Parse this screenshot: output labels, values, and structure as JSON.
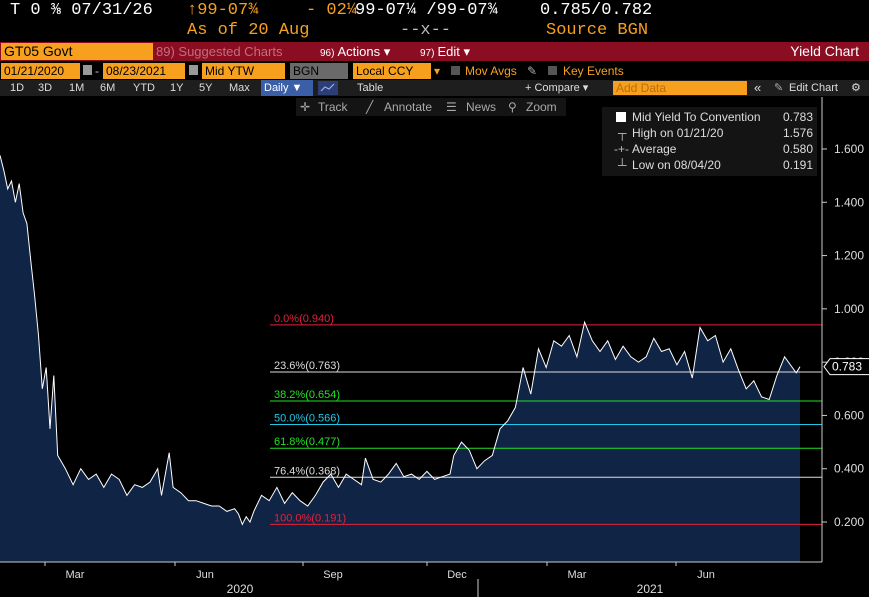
{
  "header": {
    "ticker": "T 0 ⅜ 07/31/26",
    "bid_ask_change": "↑99-07¾",
    "change": "- 02¼",
    "price": "99-07¼ /99-07¾",
    "yields": "0.785/0.782",
    "as_of": "As of 20 Aug",
    "dashes": "--x--",
    "source": "Source BGN"
  },
  "toolbar1": {
    "security": "GT05 Govt",
    "suggested": "89) Suggested Charts",
    "actions_num": "96)",
    "actions": "Actions ▾",
    "edit_num": "97)",
    "edit": "Edit ▾",
    "title": "Yield Chart"
  },
  "toolbar2": {
    "start_date": "01/21/2020",
    "end_date": "08/23/2021",
    "field": "Mid YTW",
    "source": "BGN",
    "currency": "Local CCY",
    "currency_arrow": "▾",
    "mov_avgs": "Mov Avgs",
    "key_events": "Key Events"
  },
  "toolbar3": {
    "periods": [
      "1D",
      "3D",
      "1M",
      "6M",
      "YTD",
      "1Y",
      "5Y",
      "Max"
    ],
    "frequency": "Daily ▼",
    "table": "Table",
    "compare": "+ Compare ▾",
    "add_data_placeholder": "Add Data",
    "back": "«",
    "edit_chart": "Edit Chart",
    "gear": "⚙"
  },
  "chart_tools": {
    "track": "Track",
    "annotate": "Annotate",
    "news": "News",
    "zoom": "Zoom"
  },
  "legend": {
    "series_label": "Mid Yield To Convention",
    "series_value": "0.783",
    "high_label": "High on 01/21/20",
    "high_value": "1.576",
    "avg_label": "Average",
    "avg_value": "0.580",
    "low_label": "Low on 08/04/20",
    "low_value": "0.191"
  },
  "colors": {
    "accent_orange": "#f7a01e",
    "toolbar_red": "#8b0d22",
    "fill": "#102446",
    "series": "#ffffff"
  },
  "chart_data": {
    "type": "area",
    "y_ticks": [
      0.2,
      0.4,
      0.6,
      0.8,
      1.0,
      1.2,
      1.4,
      1.6
    ],
    "y_tick_labels": [
      "0.200",
      "0.400",
      "0.600",
      "0.800",
      "1.000",
      "1.200",
      "1.400",
      "1.600"
    ],
    "ylim": [
      0.05,
      1.72
    ],
    "x_month_labels": [
      "Mar",
      "Jun",
      "Sep",
      "Dec",
      "Mar",
      "Jun"
    ],
    "x_year_labels": [
      "2020",
      "2021"
    ],
    "last_value_label": "0.783",
    "fib_levels": [
      {
        "label": "0.0%(0.940)",
        "value": 0.94,
        "color": "#e8203c"
      },
      {
        "label": "23.6%(0.763)",
        "value": 0.763,
        "color": "#dddddd"
      },
      {
        "label": "38.2%(0.654)",
        "value": 0.654,
        "color": "#22e022"
      },
      {
        "label": "50.0%(0.566)",
        "value": 0.566,
        "color": "#20c8e8"
      },
      {
        "label": "61.8%(0.477)",
        "value": 0.477,
        "color": "#22e022"
      },
      {
        "label": "76.4%(0.368)",
        "value": 0.368,
        "color": "#dddddd"
      },
      {
        "label": "100.0%(0.191)",
        "value": 0.191,
        "color": "#e8203c"
      }
    ],
    "series": [
      {
        "values": [
          [
            0,
            1.576
          ],
          [
            0.01,
            1.52
          ],
          [
            0.02,
            1.45
          ],
          [
            0.03,
            1.48
          ],
          [
            0.04,
            1.4
          ],
          [
            0.05,
            1.47
          ],
          [
            0.06,
            1.36
          ],
          [
            0.07,
            1.32
          ],
          [
            0.08,
            1.18
          ],
          [
            0.09,
            1.05
          ],
          [
            0.1,
            0.9
          ],
          [
            0.11,
            0.7
          ],
          [
            0.12,
            0.78
          ],
          [
            0.13,
            0.55
          ],
          [
            0.14,
            0.75
          ],
          [
            0.15,
            0.45
          ],
          [
            0.17,
            0.4
          ],
          [
            0.19,
            0.34
          ],
          [
            0.21,
            0.4
          ],
          [
            0.23,
            0.36
          ],
          [
            0.25,
            0.38
          ],
          [
            0.27,
            0.33
          ],
          [
            0.29,
            0.38
          ],
          [
            0.31,
            0.36
          ],
          [
            0.33,
            0.3
          ],
          [
            0.35,
            0.34
          ],
          [
            0.37,
            0.33
          ],
          [
            0.39,
            0.35
          ],
          [
            0.41,
            0.4
          ],
          [
            0.42,
            0.3
          ],
          [
            0.44,
            0.46
          ],
          [
            0.45,
            0.33
          ],
          [
            0.47,
            0.31
          ],
          [
            0.49,
            0.28
          ],
          [
            0.51,
            0.28
          ],
          [
            0.53,
            0.27
          ],
          [
            0.55,
            0.26
          ],
          [
            0.57,
            0.26
          ],
          [
            0.59,
            0.24
          ],
          [
            0.61,
            0.25
          ],
          [
            0.62,
            0.23
          ],
          [
            0.63,
            0.191
          ],
          [
            0.64,
            0.22
          ],
          [
            0.65,
            0.2
          ],
          [
            0.66,
            0.24
          ],
          [
            0.68,
            0.3
          ],
          [
            0.7,
            0.28
          ],
          [
            0.72,
            0.33
          ],
          [
            0.74,
            0.27
          ],
          [
            0.76,
            0.31
          ],
          [
            0.78,
            0.28
          ],
          [
            0.8,
            0.26
          ],
          [
            0.82,
            0.3
          ],
          [
            0.84,
            0.35
          ],
          [
            0.86,
            0.38
          ],
          [
            0.88,
            0.33
          ],
          [
            0.9,
            0.38
          ],
          [
            0.92,
            0.36
          ],
          [
            0.94,
            0.34
          ],
          [
            0.95,
            0.44
          ],
          [
            0.97,
            0.36
          ],
          [
            0.99,
            0.35
          ],
          [
            1.01,
            0.38
          ],
          [
            1.03,
            0.42
          ],
          [
            1.05,
            0.37
          ],
          [
            1.07,
            0.38
          ],
          [
            1.09,
            0.36
          ],
          [
            1.11,
            0.39
          ],
          [
            1.13,
            0.36
          ],
          [
            1.15,
            0.37
          ],
          [
            1.17,
            0.38
          ],
          [
            1.18,
            0.45
          ],
          [
            1.2,
            0.5
          ],
          [
            1.22,
            0.47
          ],
          [
            1.24,
            0.4
          ],
          [
            1.26,
            0.43
          ],
          [
            1.28,
            0.45
          ],
          [
            1.3,
            0.55
          ],
          [
            1.32,
            0.58
          ],
          [
            1.34,
            0.63
          ],
          [
            1.36,
            0.78
          ],
          [
            1.38,
            0.68
          ],
          [
            1.4,
            0.85
          ],
          [
            1.42,
            0.78
          ],
          [
            1.44,
            0.88
          ],
          [
            1.46,
            0.86
          ],
          [
            1.48,
            0.9
          ],
          [
            1.5,
            0.82
          ],
          [
            1.52,
            0.95
          ],
          [
            1.54,
            0.88
          ],
          [
            1.56,
            0.84
          ],
          [
            1.58,
            0.88
          ],
          [
            1.6,
            0.81
          ],
          [
            1.62,
            0.86
          ],
          [
            1.64,
            0.82
          ],
          [
            1.66,
            0.8
          ],
          [
            1.68,
            0.82
          ],
          [
            1.7,
            0.89
          ],
          [
            1.72,
            0.84
          ],
          [
            1.74,
            0.85
          ],
          [
            1.76,
            0.79
          ],
          [
            1.78,
            0.84
          ],
          [
            1.8,
            0.74
          ],
          [
            1.82,
            0.93
          ],
          [
            1.84,
            0.88
          ],
          [
            1.86,
            0.9
          ],
          [
            1.88,
            0.8
          ],
          [
            1.9,
            0.85
          ],
          [
            1.92,
            0.77
          ],
          [
            1.94,
            0.7
          ],
          [
            1.96,
            0.73
          ],
          [
            1.98,
            0.67
          ],
          [
            2.0,
            0.66
          ],
          [
            2.02,
            0.75
          ],
          [
            2.04,
            0.82
          ],
          [
            2.06,
            0.78
          ],
          [
            2.07,
            0.76
          ],
          [
            2.08,
            0.783
          ]
        ]
      }
    ]
  }
}
